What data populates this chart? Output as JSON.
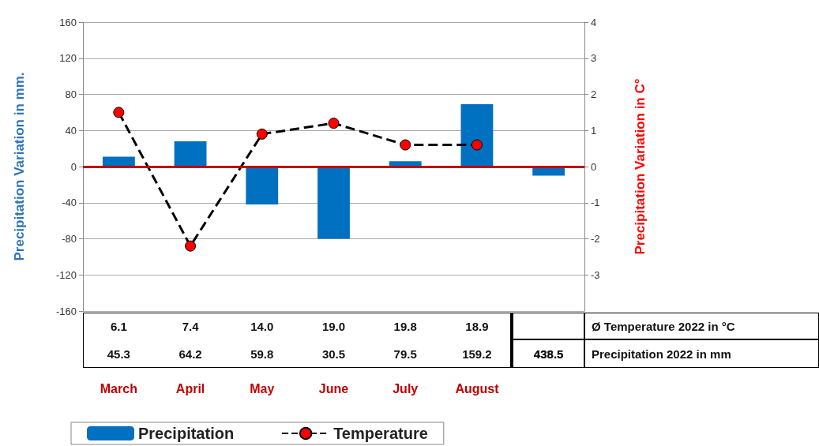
{
  "chart_data": {
    "type": "bar",
    "ylabel": "Precipitation Variation in mm.",
    "y2label": "Precipitation Variation in C°",
    "categories": [
      "March",
      "April",
      "May",
      "June",
      "July",
      "August",
      null
    ],
    "series": [
      {
        "name": "Precipitation",
        "color": "#0070c0",
        "values": [
          11,
          28,
          -42,
          -80,
          6,
          69,
          -10
        ]
      },
      {
        "name": "Temperature",
        "type": "line",
        "axis": "y2",
        "color": "#ff0000",
        "line_style": "dashed",
        "marker": "circle",
        "values": [
          1.5,
          -2.2,
          0.9,
          1.2,
          0.6,
          0.6,
          null
        ]
      }
    ],
    "ylim": [
      -160,
      160
    ],
    "yticks": [
      -160,
      -120,
      -80,
      -40,
      0,
      40,
      80,
      120,
      160
    ],
    "y2lim": [
      -4,
      4
    ],
    "y2ticks": [
      -3,
      -2,
      -1,
      0,
      1,
      2,
      3,
      4
    ],
    "ref_lines": [
      {
        "axis": "y",
        "value": 0,
        "color": "#c00000"
      }
    ],
    "grid": "y",
    "legend": "bottom",
    "annotations": [
      "6.1",
      "7.4",
      "14.0",
      "19.0",
      "19.8",
      "18.9",
      "Ø Temperature 2022 in °C",
      "45.3",
      "64.2",
      "59.8",
      "30.5",
      "79.5",
      "159.2",
      "438.5",
      "Precipitation 2022 in mm"
    ]
  }
}
